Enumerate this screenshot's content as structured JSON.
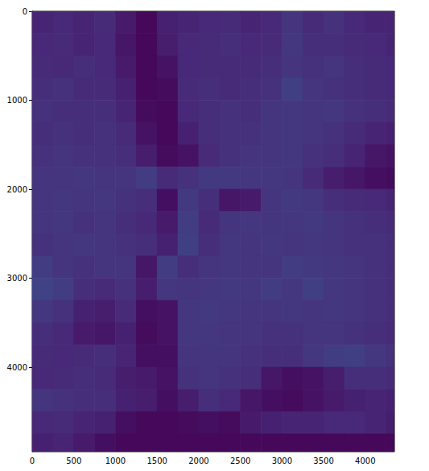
{
  "chart_data": {
    "type": "heatmap",
    "xlim": [
      0,
      4350
    ],
    "ylim": [
      4950,
      0
    ],
    "xticks": [
      0,
      500,
      1000,
      1500,
      2000,
      2500,
      3000,
      3500,
      4000
    ],
    "yticks": [
      0,
      1000,
      2000,
      3000,
      4000
    ],
    "zlim": [
      0,
      10
    ],
    "x_bins": [
      0,
      250,
      500,
      750,
      1000,
      1250,
      1500,
      1750,
      2000,
      2250,
      2500,
      2750,
      3000,
      3250,
      3500,
      3750,
      4000,
      4250,
      4500
    ],
    "y_bins": [
      0,
      250,
      500,
      750,
      1000,
      1250,
      1500,
      1750,
      2000,
      2250,
      2500,
      2750,
      3000,
      3250,
      3500,
      3750,
      4000,
      4250,
      4500,
      4750,
      5000
    ],
    "values": [
      [
        1.0,
        1.1,
        1.0,
        1.2,
        0.7,
        0.2,
        0.9,
        1.0,
        1.1,
        1.2,
        1.0,
        1.1,
        1.5,
        1.2,
        1.4,
        1.1,
        1.0,
        1.0
      ],
      [
        1.1,
        1.2,
        1.0,
        1.1,
        0.6,
        0.2,
        0.8,
        1.1,
        1.2,
        1.3,
        1.1,
        1.2,
        1.6,
        1.3,
        1.3,
        1.2,
        1.1,
        1.0
      ],
      [
        1.2,
        1.1,
        1.3,
        1.1,
        0.7,
        0.2,
        0.5,
        1.1,
        1.2,
        1.2,
        1.2,
        1.3,
        1.5,
        1.4,
        1.5,
        1.3,
        1.2,
        1.1
      ],
      [
        1.3,
        1.4,
        1.2,
        1.2,
        0.9,
        0.2,
        0.3,
        1.2,
        1.3,
        1.2,
        1.3,
        1.4,
        1.9,
        1.5,
        1.4,
        1.3,
        1.2,
        1.1
      ],
      [
        1.4,
        1.3,
        1.3,
        1.3,
        1.0,
        0.3,
        0.2,
        1.1,
        1.3,
        1.4,
        1.3,
        1.5,
        1.6,
        1.5,
        1.6,
        1.4,
        1.3,
        1.2
      ],
      [
        1.3,
        1.4,
        1.3,
        1.4,
        1.2,
        0.5,
        0.2,
        0.9,
        1.3,
        1.4,
        1.4,
        1.5,
        1.6,
        1.5,
        1.4,
        1.2,
        1.0,
        0.9
      ],
      [
        1.4,
        1.5,
        1.4,
        1.4,
        1.3,
        0.8,
        0.3,
        0.5,
        1.2,
        1.4,
        1.5,
        1.5,
        1.6,
        1.4,
        1.3,
        1.0,
        0.6,
        0.5
      ],
      [
        1.5,
        1.5,
        1.6,
        1.5,
        1.5,
        1.8,
        1.2,
        1.4,
        1.7,
        1.7,
        1.6,
        1.6,
        1.5,
        1.2,
        0.8,
        0.6,
        0.4,
        0.3
      ],
      [
        1.5,
        1.6,
        1.5,
        1.6,
        1.4,
        1.3,
        0.4,
        1.7,
        1.3,
        0.6,
        0.7,
        1.5,
        1.7,
        1.6,
        1.3,
        1.2,
        1.1,
        1.0
      ],
      [
        1.5,
        1.6,
        1.4,
        1.5,
        1.3,
        1.1,
        0.7,
        1.8,
        1.2,
        1.5,
        1.6,
        1.5,
        1.6,
        1.7,
        1.5,
        1.4,
        1.3,
        1.2
      ],
      [
        1.4,
        1.5,
        1.6,
        1.5,
        1.4,
        1.3,
        0.9,
        1.9,
        1.3,
        1.6,
        1.5,
        1.6,
        1.5,
        1.6,
        1.5,
        1.4,
        1.4,
        1.3
      ],
      [
        1.8,
        1.5,
        1.4,
        1.5,
        1.5,
        0.6,
        1.8,
        1.3,
        1.5,
        1.6,
        1.5,
        1.5,
        1.8,
        1.7,
        1.6,
        1.5,
        1.4,
        1.3
      ],
      [
        2.0,
        1.8,
        1.3,
        1.2,
        1.4,
        0.8,
        1.6,
        1.5,
        1.6,
        1.7,
        1.6,
        1.8,
        1.6,
        1.9,
        1.6,
        1.5,
        1.4,
        1.3
      ],
      [
        1.6,
        1.4,
        0.9,
        0.8,
        1.2,
        0.4,
        0.5,
        1.6,
        1.7,
        1.6,
        1.5,
        1.5,
        1.6,
        1.5,
        1.6,
        1.5,
        1.4,
        1.3
      ],
      [
        1.3,
        1.1,
        0.7,
        0.6,
        0.9,
        0.3,
        0.5,
        1.6,
        1.6,
        1.5,
        1.5,
        1.4,
        1.4,
        1.5,
        1.5,
        1.4,
        1.3,
        1.2
      ],
      [
        1.2,
        1.1,
        1.2,
        1.3,
        1.0,
        0.4,
        0.4,
        1.5,
        1.5,
        1.5,
        1.4,
        1.3,
        1.3,
        1.6,
        1.8,
        1.9,
        1.6,
        1.4
      ],
      [
        1.1,
        1.2,
        1.3,
        1.2,
        0.8,
        0.7,
        0.5,
        1.4,
        1.5,
        1.4,
        1.3,
        0.6,
        0.4,
        0.5,
        0.8,
        1.3,
        1.3,
        1.2
      ],
      [
        1.5,
        1.4,
        1.3,
        1.3,
        0.9,
        0.8,
        0.4,
        0.8,
        1.3,
        1.1,
        0.6,
        0.4,
        0.3,
        0.5,
        0.7,
        0.9,
        1.0,
        0.9
      ],
      [
        1.1,
        1.2,
        1.0,
        0.9,
        0.4,
        0.2,
        0.2,
        0.3,
        0.4,
        0.3,
        0.7,
        0.9,
        1.0,
        1.0,
        1.1,
        1.1,
        1.0,
        0.8
      ],
      [
        0.9,
        1.0,
        0.7,
        0.4,
        0.2,
        0.2,
        0.2,
        0.2,
        0.2,
        0.2,
        0.2,
        0.2,
        0.2,
        0.2,
        0.2,
        0.2,
        0.2,
        0.2
      ]
    ]
  }
}
